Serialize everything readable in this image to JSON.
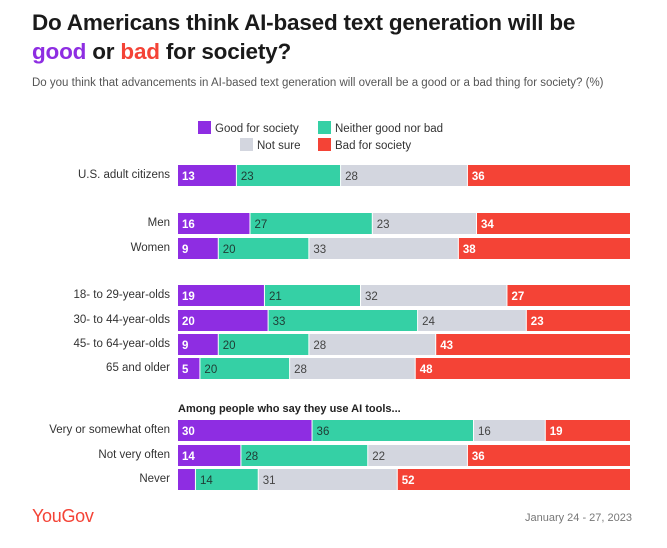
{
  "title": {
    "line1": "Do Americans think AI-based text generation will be",
    "good": "good",
    "or": "or",
    "bad": "bad",
    "rest": "for society?"
  },
  "subtitle": "Do you think that advancements in AI-based text generation will overall be a good or a bad thing for society? (%)",
  "colors": {
    "good": "#8e2de2",
    "neither": "#35d0a5",
    "notsure": "#d3d6df",
    "bad": "#f44336",
    "title_good": "#8e2de2",
    "title_bad": "#f44336"
  },
  "legend": [
    {
      "label": "Good for society",
      "color": "#8e2de2"
    },
    {
      "label": "Neither good nor bad",
      "color": "#35d0a5"
    },
    {
      "label": "Not sure",
      "color": "#d3d6df"
    },
    {
      "label": "Bad for society",
      "color": "#f44336"
    }
  ],
  "chart_data": {
    "type": "bar",
    "orientation": "horizontal",
    "stacked": true,
    "normalized_to": 100,
    "series_names": [
      "Good for society",
      "Neither good nor bad",
      "Not sure",
      "Bad for society"
    ],
    "section_label": "Among people who say they use AI tools...",
    "categories": [
      "U.S. adult citizens",
      "Men",
      "Women",
      "18- to 29-year-olds",
      "30- to 44-year-olds",
      "45- to 64-year-olds",
      "65 and older",
      "Very or somewhat often",
      "Not very often",
      "Never"
    ],
    "values": [
      [
        13,
        23,
        28,
        36
      ],
      [
        16,
        27,
        23,
        34
      ],
      [
        9,
        20,
        33,
        38
      ],
      [
        19,
        21,
        32,
        27
      ],
      [
        20,
        33,
        24,
        23
      ],
      [
        9,
        20,
        28,
        43
      ],
      [
        5,
        20,
        28,
        48
      ],
      [
        30,
        36,
        16,
        19
      ],
      [
        14,
        28,
        22,
        36
      ],
      [
        4,
        14,
        31,
        52
      ]
    ],
    "data_labels_shown": [
      [
        true,
        true,
        true,
        true
      ],
      [
        true,
        true,
        true,
        true
      ],
      [
        true,
        true,
        true,
        true
      ],
      [
        true,
        true,
        true,
        true
      ],
      [
        true,
        true,
        true,
        true
      ],
      [
        true,
        true,
        true,
        true
      ],
      [
        true,
        true,
        true,
        true
      ],
      [
        true,
        true,
        true,
        true
      ],
      [
        true,
        true,
        true,
        true
      ],
      [
        false,
        true,
        true,
        true
      ]
    ]
  },
  "footer": {
    "brand": "YouGov",
    "date": "January 24 - 27, 2023"
  }
}
